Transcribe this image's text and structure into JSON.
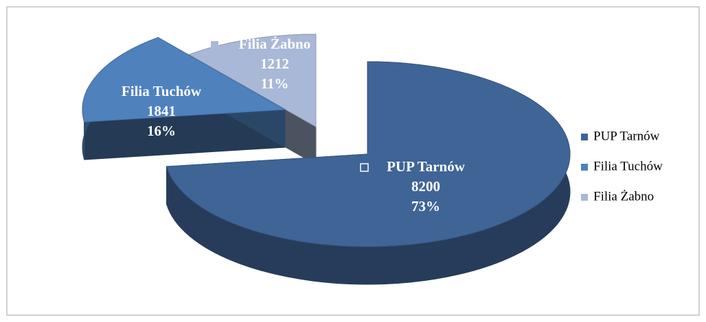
{
  "chart_data": {
    "type": "pie3d",
    "categories": [
      "PUP Tarnów",
      "Filia Tuchów",
      "Filia Żabno"
    ],
    "values": [
      8200,
      1841,
      1212
    ],
    "percent_labels": [
      "73%",
      "16%",
      "11%"
    ],
    "colors": [
      "#3f6496",
      "#4f81bd",
      "#a9b8d6"
    ],
    "legend": "right"
  }
}
